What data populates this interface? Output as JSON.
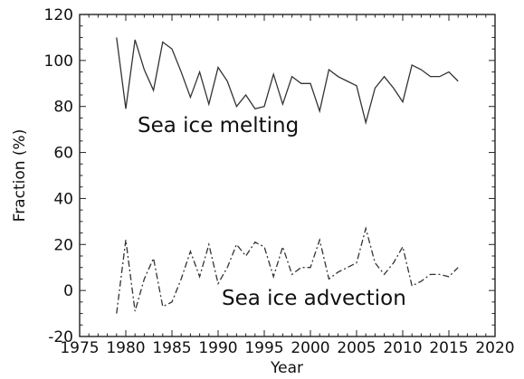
{
  "chart_data": {
    "type": "line",
    "xlabel": "Year",
    "ylabel": "Fraction (%)",
    "xlim": [
      1975,
      2020
    ],
    "ylim": [
      -20,
      120
    ],
    "x_major_ticks": [
      1975,
      1980,
      1985,
      1990,
      1995,
      2000,
      2005,
      2010,
      2015,
      2020
    ],
    "y_major_ticks": [
      -20,
      0,
      20,
      40,
      60,
      80,
      100,
      120
    ],
    "grid": false,
    "x": [
      1979,
      1980,
      1981,
      1982,
      1983,
      1984,
      1985,
      1986,
      1987,
      1988,
      1989,
      1990,
      1991,
      1992,
      1993,
      1994,
      1995,
      1996,
      1997,
      1998,
      1999,
      2000,
      2001,
      2002,
      2003,
      2004,
      2005,
      2006,
      2007,
      2008,
      2009,
      2010,
      2011,
      2012,
      2013,
      2014,
      2015,
      2016
    ],
    "series": [
      {
        "name": "Sea ice melting",
        "line_style": "solid",
        "color": "#333333",
        "values": [
          110,
          79,
          109,
          96,
          87,
          108,
          105,
          95,
          84,
          95,
          81,
          97,
          91,
          80,
          85,
          79,
          80,
          94,
          81,
          93,
          90,
          90,
          78,
          96,
          93,
          91,
          89,
          73,
          88,
          93,
          88,
          82,
          98,
          96,
          93,
          93,
          95,
          91
        ]
      },
      {
        "name": "Sea ice advection",
        "line_style": "dashdot",
        "color": "#333333",
        "values": [
          -10,
          22,
          -9,
          5,
          14,
          -7,
          -5,
          5,
          17,
          6,
          20,
          3,
          10,
          20,
          15,
          21,
          19,
          6,
          19,
          7,
          10,
          10,
          22,
          5,
          8,
          10,
          12,
          27,
          12,
          7,
          12,
          19,
          2,
          4,
          7,
          7,
          6,
          10
        ]
      }
    ]
  }
}
